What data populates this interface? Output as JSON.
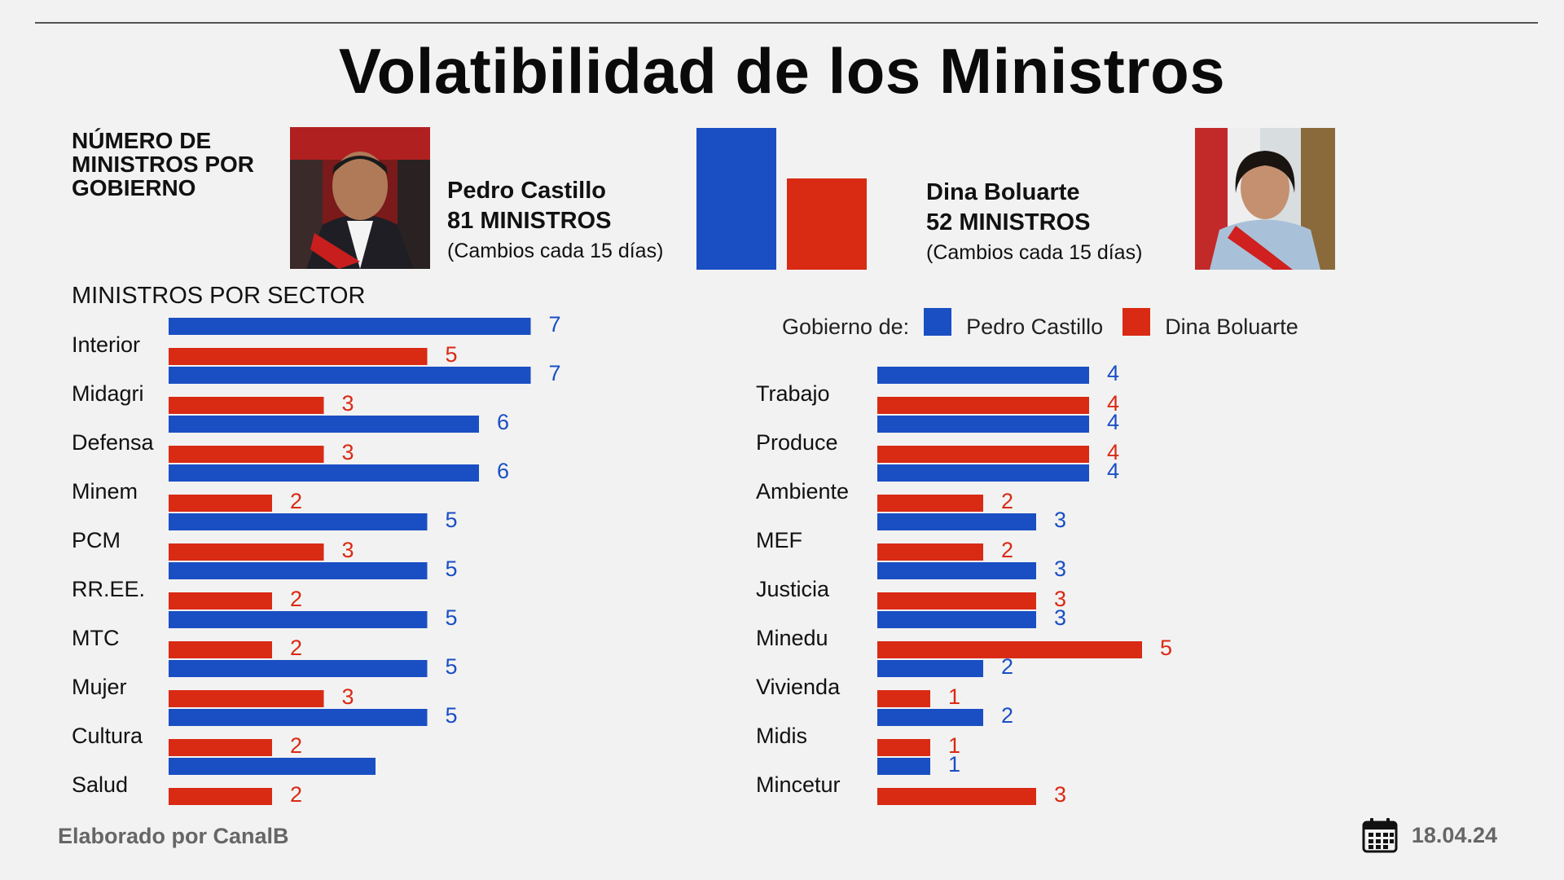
{
  "title": "Volatibilidad de los Ministros",
  "summary_label": "NÚMERO DE MINISTROS POR GOBIERNO",
  "governments": [
    {
      "name": "Pedro Castillo",
      "count_text": "81 MINISTROS",
      "note": "(Cambios cada 15 días)",
      "total": 81
    },
    {
      "name": "Dina Boluarte",
      "count_text": "52 MINISTROS",
      "note": "(Cambios cada 15 días)",
      "total": 52
    }
  ],
  "sector_heading": "MINISTROS POR SECTOR",
  "legend": {
    "prefix": "Gobierno de:",
    "items": [
      "Pedro Castillo",
      "Dina Boluarte"
    ]
  },
  "colors": {
    "castillo": "#1a4fc4",
    "boluarte": "#d92a14"
  },
  "chart_data": [
    {
      "type": "bar",
      "categories": [
        "Interior",
        "Midagri",
        "Defensa",
        "Minem",
        "PCM",
        "RR.EE.",
        "MTC",
        "Mujer",
        "Cultura",
        "Salud"
      ],
      "series": [
        {
          "name": "Pedro Castillo",
          "values": [
            7,
            7,
            6,
            6,
            5,
            5,
            5,
            5,
            5,
            4
          ],
          "labels": [
            "7",
            "7",
            "6",
            "6",
            "5",
            "5",
            "5",
            "5",
            "5",
            ""
          ]
        },
        {
          "name": "Dina Boluarte",
          "values": [
            5,
            3,
            3,
            2,
            3,
            2,
            2,
            3,
            2,
            2
          ],
          "labels": [
            "5",
            "3",
            "3",
            "2",
            "3",
            "2",
            "2",
            "3",
            "2",
            "2"
          ]
        }
      ]
    },
    {
      "type": "bar",
      "categories": [
        "Trabajo",
        "Produce",
        "Ambiente",
        "MEF",
        "Justicia",
        "Minedu",
        "Vivienda",
        "Midis",
        "Mincetur"
      ],
      "series": [
        {
          "name": "Pedro Castillo",
          "values": [
            4,
            4,
            4,
            3,
            3,
            3,
            2,
            2,
            1
          ],
          "labels": [
            "4",
            "4",
            "4",
            "3",
            "3",
            "3",
            "2",
            "2",
            "1"
          ]
        },
        {
          "name": "Dina Boluarte",
          "values": [
            4,
            4,
            2,
            2,
            3,
            5,
            1,
            1,
            3
          ],
          "labels": [
            "4",
            "4",
            "2",
            "2",
            "3",
            "5",
            "1",
            "1",
            "3"
          ]
        }
      ]
    }
  ],
  "footer": {
    "credit": "Elaborado por CanalB",
    "date": "18.04.24"
  },
  "icons": {
    "calendar": "calendar-icon"
  }
}
